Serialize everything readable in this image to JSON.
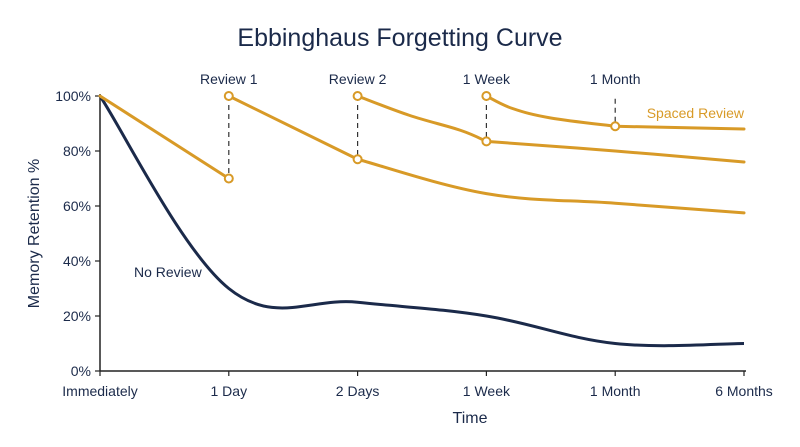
{
  "chart_data": {
    "type": "line",
    "title": "Ebbinghaus Forgetting Curve",
    "xlabel": "Time",
    "ylabel": "Memory Retention %",
    "categories": [
      "Immediately",
      "1 Day",
      "2 Days",
      "1 Week",
      "1 Month",
      "6 Months"
    ],
    "ylim": [
      0,
      100
    ],
    "yticks": [
      0,
      20,
      40,
      60,
      80,
      100
    ],
    "ytick_labels": [
      "0%",
      "20%",
      "40%",
      "60%",
      "80%",
      "100%"
    ],
    "grid": false,
    "colors": {
      "no_review": "#1b2a4a",
      "spaced_review": "#d89a27"
    },
    "no_review": {
      "name": "No Review",
      "points": [
        [
          0,
          100
        ],
        [
          1,
          30
        ],
        [
          2,
          25
        ],
        [
          3,
          20
        ],
        [
          4,
          10
        ],
        [
          5,
          10
        ]
      ]
    },
    "spaced_review": {
      "name": "Spaced Review",
      "segments": [
        [
          [
            0,
            100
          ],
          [
            1,
            70
          ]
        ],
        [
          [
            1,
            100
          ],
          [
            2,
            77
          ]
        ],
        [
          [
            2,
            77
          ],
          [
            3,
            64.5
          ],
          [
            4,
            61
          ],
          [
            5,
            57.5
          ]
        ],
        [
          [
            2,
            100
          ],
          [
            2.4,
            93
          ],
          [
            2.8,
            87.5
          ],
          [
            3,
            83.5
          ]
        ],
        [
          [
            3,
            83.5
          ],
          [
            4,
            80
          ],
          [
            5,
            76
          ]
        ],
        [
          [
            3,
            100
          ],
          [
            3.2,
            95.5
          ],
          [
            3.5,
            92
          ],
          [
            4,
            89
          ]
        ],
        [
          [
            4,
            89
          ],
          [
            5,
            88
          ]
        ]
      ],
      "markers": [
        [
          1,
          70
        ],
        [
          1,
          100
        ],
        [
          2,
          77
        ],
        [
          2,
          100
        ],
        [
          3,
          83.5
        ],
        [
          3,
          100
        ],
        [
          4,
          89
        ]
      ]
    },
    "annotations": [
      {
        "label": "Review 1",
        "x": 1,
        "y_from": 70,
        "y_to": 100
      },
      {
        "label": "Review 2",
        "x": 2,
        "y_from": 77,
        "y_to": 100
      },
      {
        "label": "1 Week",
        "x": 3,
        "y_from": 83.5,
        "y_to": 100
      },
      {
        "label": "1 Month",
        "x": 4,
        "y_from": 89,
        "y_to": 99
      }
    ]
  }
}
